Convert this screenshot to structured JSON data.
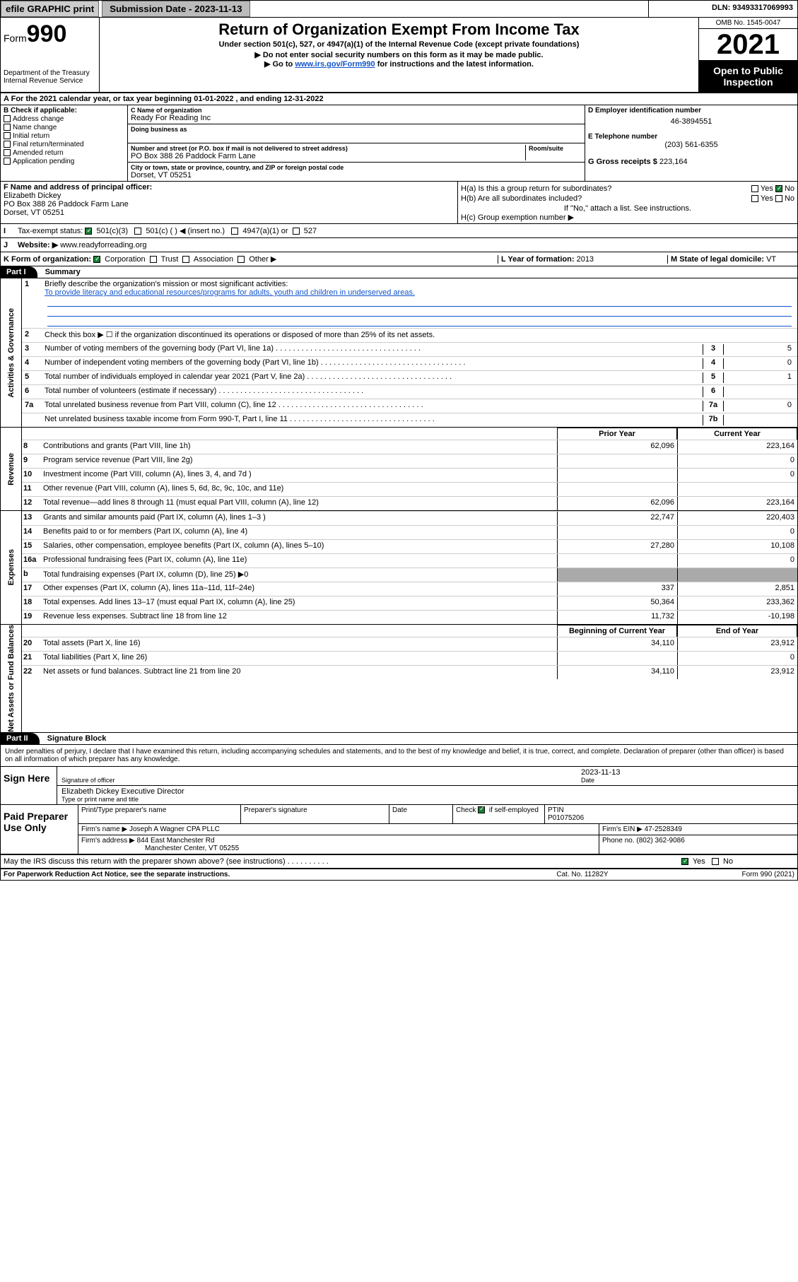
{
  "top": {
    "efile": "efile GRAPHIC print",
    "submission_btn": "Submission Date - 2023-11-13",
    "dln": "DLN: 93493317069993"
  },
  "header": {
    "form_pre": "Form",
    "form_num": "990",
    "dept": "Department of the Treasury",
    "irs": "Internal Revenue Service",
    "title": "Return of Organization Exempt From Income Tax",
    "sub1": "Under section 501(c), 527, or 4947(a)(1) of the Internal Revenue Code (except private foundations)",
    "sub2": "▶ Do not enter social security numbers on this form as it may be made public.",
    "sub3_pre": "▶ Go to ",
    "sub3_link": "www.irs.gov/Form990",
    "sub3_post": " for instructions and the latest information.",
    "omb": "OMB No. 1545-0047",
    "year": "2021",
    "otp": "Open to Public Inspection"
  },
  "period": "For the 2021 calendar year, or tax year beginning 01-01-2022    , and ending 12-31-2022",
  "boxB": {
    "label": "B Check if applicable:",
    "items": [
      "Address change",
      "Name change",
      "Initial return",
      "Final return/terminated",
      "Amended return",
      "Application pending"
    ]
  },
  "boxC": {
    "lbl": "C Name of organization",
    "val": "Ready For Reading Inc",
    "dba": "Doing business as"
  },
  "boxAddr": {
    "street_lbl": "Number and street (or P.O. box if mail is not delivered to street address)",
    "street": "PO Box 388 26 Paddock Farm Lane",
    "room_lbl": "Room/suite",
    "city_lbl": "City or town, state or province, country, and ZIP or foreign postal code",
    "city": "Dorset, VT  05251"
  },
  "boxD": {
    "lbl": "D Employer identification number",
    "val": "46-3894551"
  },
  "boxE": {
    "lbl": "E Telephone number",
    "val": "(203) 561-6355"
  },
  "boxG": {
    "lbl": "G Gross receipts $",
    "val": "223,164"
  },
  "boxF": {
    "lbl": "F Name and address of principal officer:",
    "name": "Elizabeth Dickey",
    "addr1": "PO Box 388 26 Paddock Farm Lane",
    "addr2": "Dorset, VT  05251"
  },
  "boxH": {
    "a": "H(a)  Is this a group return for subordinates?",
    "yn_yes": "Yes",
    "yn_no": "No",
    "b": "H(b)  Are all subordinates included?",
    "note": "If \"No,\" attach a list. See instructions.",
    "c": "H(c)  Group exemption number ▶"
  },
  "lineI": {
    "lbl": "I",
    "txt": "Tax-exempt status:",
    "o1": "501(c)(3)",
    "o2": "501(c) (  ) ◀ (insert no.)",
    "o3": "4947(a)(1) or",
    "o4": "527"
  },
  "lineJ": {
    "lbl": "J",
    "txt": "Website: ▶",
    "val": "www.readyforreading.org"
  },
  "lineK": {
    "lbl": "K Form of organization:",
    "o1": "Corporation",
    "o2": "Trust",
    "o3": "Association",
    "o4": "Other ▶"
  },
  "lineL": {
    "lbl": "L Year of formation:",
    "val": "2013"
  },
  "lineM": {
    "lbl": "M State of legal domicile:",
    "val": "VT"
  },
  "partI": {
    "hdr": "Part I",
    "title": "Summary"
  },
  "summary": {
    "l1": {
      "n": "1",
      "d": "Briefly describe the organization's mission or most significant activities:",
      "v": "To provide literacy and educational resources/programs for adults, youth and children in underserved areas."
    },
    "l2": {
      "n": "2",
      "d": "Check this box ▶ ☐  if the organization discontinued its operations or disposed of more than 25% of its net assets."
    },
    "gov": [
      {
        "n": "3",
        "d": "Number of voting members of the governing body (Part VI, line 1a)",
        "nc": "3",
        "v": "5"
      },
      {
        "n": "4",
        "d": "Number of independent voting members of the governing body (Part VI, line 1b)",
        "nc": "4",
        "v": "0"
      },
      {
        "n": "5",
        "d": "Total number of individuals employed in calendar year 2021 (Part V, line 2a)",
        "nc": "5",
        "v": "1"
      },
      {
        "n": "6",
        "d": "Total number of volunteers (estimate if necessary)",
        "nc": "6",
        "v": ""
      },
      {
        "n": "7a",
        "d": "Total unrelated business revenue from Part VIII, column (C), line 12",
        "nc": "7a",
        "v": "0"
      },
      {
        "n": "",
        "d": "Net unrelated business taxable income from Form 990-T, Part I, line 11",
        "nc": "7b",
        "v": ""
      }
    ],
    "col_hdr": {
      "py": "Prior Year",
      "cy": "Current Year"
    },
    "rev": [
      {
        "n": "8",
        "d": "Contributions and grants (Part VIII, line 1h)",
        "c1": "62,096",
        "c2": "223,164"
      },
      {
        "n": "9",
        "d": "Program service revenue (Part VIII, line 2g)",
        "c1": "",
        "c2": "0"
      },
      {
        "n": "10",
        "d": "Investment income (Part VIII, column (A), lines 3, 4, and 7d )",
        "c1": "",
        "c2": "0"
      },
      {
        "n": "11",
        "d": "Other revenue (Part VIII, column (A), lines 5, 6d, 8c, 9c, 10c, and 11e)",
        "c1": "",
        "c2": ""
      },
      {
        "n": "12",
        "d": "Total revenue—add lines 8 through 11 (must equal Part VIII, column (A), line 12)",
        "c1": "62,096",
        "c2": "223,164"
      }
    ],
    "exp": [
      {
        "n": "13",
        "d": "Grants and similar amounts paid (Part IX, column (A), lines 1–3 )",
        "c1": "22,747",
        "c2": "220,403"
      },
      {
        "n": "14",
        "d": "Benefits paid to or for members (Part IX, column (A), line 4)",
        "c1": "",
        "c2": "0"
      },
      {
        "n": "15",
        "d": "Salaries, other compensation, employee benefits (Part IX, column (A), lines 5–10)",
        "c1": "27,280",
        "c2": "10,108"
      },
      {
        "n": "16a",
        "d": "Professional fundraising fees (Part IX, column (A), line 11e)",
        "c1": "",
        "c2": "0"
      },
      {
        "n": "b",
        "d": "Total fundraising expenses (Part IX, column (D), line 25) ▶0",
        "shade": true
      },
      {
        "n": "17",
        "d": "Other expenses (Part IX, column (A), lines 11a–11d, 11f–24e)",
        "c1": "337",
        "c2": "2,851"
      },
      {
        "n": "18",
        "d": "Total expenses. Add lines 13–17 (must equal Part IX, column (A), line 25)",
        "c1": "50,364",
        "c2": "233,362"
      },
      {
        "n": "19",
        "d": "Revenue less expenses. Subtract line 18 from line 12",
        "c1": "11,732",
        "c2": "-10,198"
      }
    ],
    "na_hdr": {
      "c1": "Beginning of Current Year",
      "c2": "End of Year"
    },
    "na": [
      {
        "n": "20",
        "d": "Total assets (Part X, line 16)",
        "c1": "34,110",
        "c2": "23,912"
      },
      {
        "n": "21",
        "d": "Total liabilities (Part X, line 26)",
        "c1": "",
        "c2": "0"
      },
      {
        "n": "22",
        "d": "Net assets or fund balances. Subtract line 21 from line 20",
        "c1": "34,110",
        "c2": "23,912"
      }
    ]
  },
  "vtabs": {
    "ag": "Activities & Governance",
    "rev": "Revenue",
    "exp": "Expenses",
    "na": "Net Assets or Fund Balances"
  },
  "partII": {
    "hdr": "Part II",
    "title": "Signature Block"
  },
  "perj": "Under penalties of perjury, I declare that I have examined this return, including accompanying schedules and statements, and to the best of my knowledge and belief, it is true, correct, and complete. Declaration of preparer (other than officer) is based on all information of which preparer has any knowledge.",
  "sign": {
    "here": "Sign Here",
    "sig_lbl": "Signature of officer",
    "date_lbl": "Date",
    "date": "2023-11-13",
    "name": "Elizabeth Dickey  Executive Director",
    "name_lbl": "Type or print name and title"
  },
  "prep": {
    "title": "Paid Preparer Use Only",
    "h": {
      "c1": "Print/Type preparer's name",
      "c2": "Preparer's signature",
      "c3": "Date",
      "c4": "Check ☑ if self-employed",
      "c5": "PTIN"
    },
    "ptin": "P01075206",
    "firm_lbl": "Firm's name    ▶",
    "firm": "Joseph A Wagner CPA PLLC",
    "ein_lbl": "Firm's EIN ▶",
    "ein": "47-2528349",
    "addr_lbl": "Firm's address ▶",
    "addr1": "844 East Manchester Rd",
    "addr2": "Manchester Center, VT  05255",
    "phone_lbl": "Phone no.",
    "phone": "(802) 362-9086"
  },
  "discuss": "May the IRS discuss this return with the preparer shown above? (see instructions)",
  "ftr": {
    "l": "For Paperwork Reduction Act Notice, see the separate instructions.",
    "m": "Cat. No. 11282Y",
    "r": "Form 990 (2021)"
  }
}
